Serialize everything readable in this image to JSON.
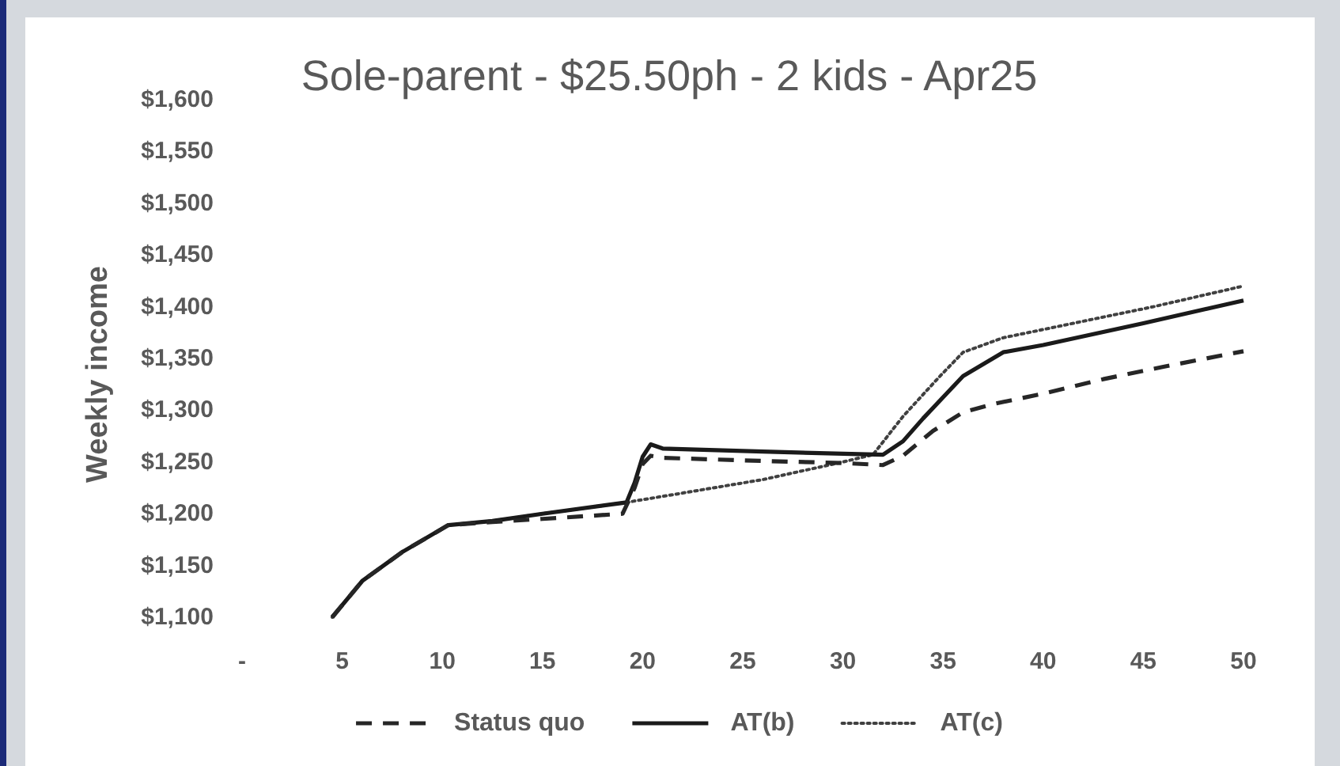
{
  "chart_data": {
    "type": "line",
    "title": "Sole-parent - $25.50ph - 2 kids - Apr25",
    "ylabel": "Weekly income",
    "xlim": [
      0,
      50
    ],
    "xticks": [
      {
        "value": 0,
        "label": "-"
      },
      5,
      10,
      15,
      20,
      25,
      30,
      35,
      40,
      45,
      50
    ],
    "ylim": [
      1100,
      1600
    ],
    "yticks": [
      {
        "value": 1100,
        "label": "$1,100"
      },
      {
        "value": 1150,
        "label": "$1,150"
      },
      {
        "value": 1200,
        "label": "$1,200"
      },
      {
        "value": 1250,
        "label": "$1,250"
      },
      {
        "value": 1300,
        "label": "$1,300"
      },
      {
        "value": 1350,
        "label": "$1,350"
      },
      {
        "value": 1400,
        "label": "$1,400"
      },
      {
        "value": 1450,
        "label": "$1,450"
      },
      {
        "value": 1500,
        "label": "$1,500"
      },
      {
        "value": 1550,
        "label": "$1,550"
      },
      {
        "value": 1600,
        "label": "$1,600"
      }
    ],
    "legend": "bottom",
    "series": [
      {
        "name": "Status quo",
        "color": "#262626",
        "line_style": "dashed",
        "x": [
          4.5,
          6,
          8,
          10.3,
          12.5,
          15,
          19,
          19.6,
          20,
          20.4,
          21,
          26,
          30,
          32,
          33,
          34.5,
          36,
          37.5,
          40,
          43,
          46,
          50
        ],
        "values": [
          1100,
          1135,
          1163,
          1189,
          1192,
          1195,
          1200,
          1225,
          1248,
          1256,
          1254,
          1251,
          1249,
          1247,
          1256,
          1280,
          1298,
          1306,
          1316,
          1330,
          1342,
          1357
        ]
      },
      {
        "name": "AT(b)",
        "color": "#1a1a1a",
        "line_style": "solid",
        "x": [
          4.5,
          6,
          8,
          10.3,
          12.5,
          15,
          19.2,
          19.6,
          20,
          20.4,
          21,
          26,
          32,
          33,
          34,
          36,
          38,
          40,
          45,
          50
        ],
        "values": [
          1100,
          1135,
          1163,
          1189,
          1193,
          1200,
          1211,
          1230,
          1255,
          1267,
          1263,
          1260,
          1257,
          1270,
          1292,
          1333,
          1356,
          1363,
          1384,
          1406
        ]
      },
      {
        "name": "AT(c)",
        "color": "#404040",
        "line_style": "dotted",
        "x": [
          4.5,
          6,
          8,
          10.3,
          12.5,
          15,
          19.2,
          22,
          26,
          30,
          31.5,
          33,
          34.8,
          36,
          38,
          40.5,
          45.5,
          50
        ],
        "values": [
          1100,
          1135,
          1163,
          1189,
          1193,
          1200,
          1211,
          1220,
          1233,
          1250,
          1257,
          1294,
          1332,
          1356,
          1370,
          1380,
          1400,
          1420
        ]
      }
    ]
  }
}
